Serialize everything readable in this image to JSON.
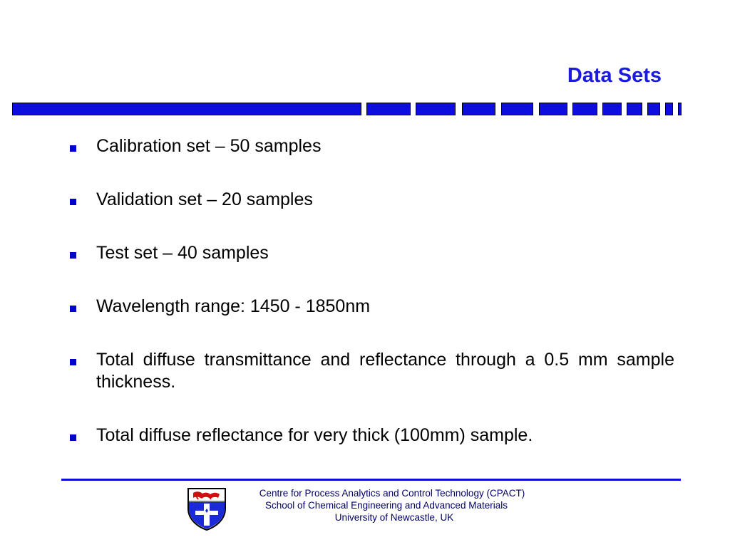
{
  "slide": {
    "title": "Data Sets",
    "accent_color": "#1a1ae0",
    "bullets": [
      "Calibration set – 50 samples",
      "Validation set – 20 samples",
      "Test set – 40 samples",
      "Wavelength range: 1450 - 1850nm",
      "Total diffuse transmittance and reflectance through a 0.5 mm sample thickness.",
      "Total diffuse reflectance for very thick (100mm) sample."
    ]
  },
  "footer": {
    "line1": "Centre for Process Analytics and Control Technology  (CPACT)",
    "line2": "School of Chemical Engineering and Advanced Materials",
    "line3": "University of Newcastle, UK",
    "logo_icon": "university-crest-icon"
  }
}
